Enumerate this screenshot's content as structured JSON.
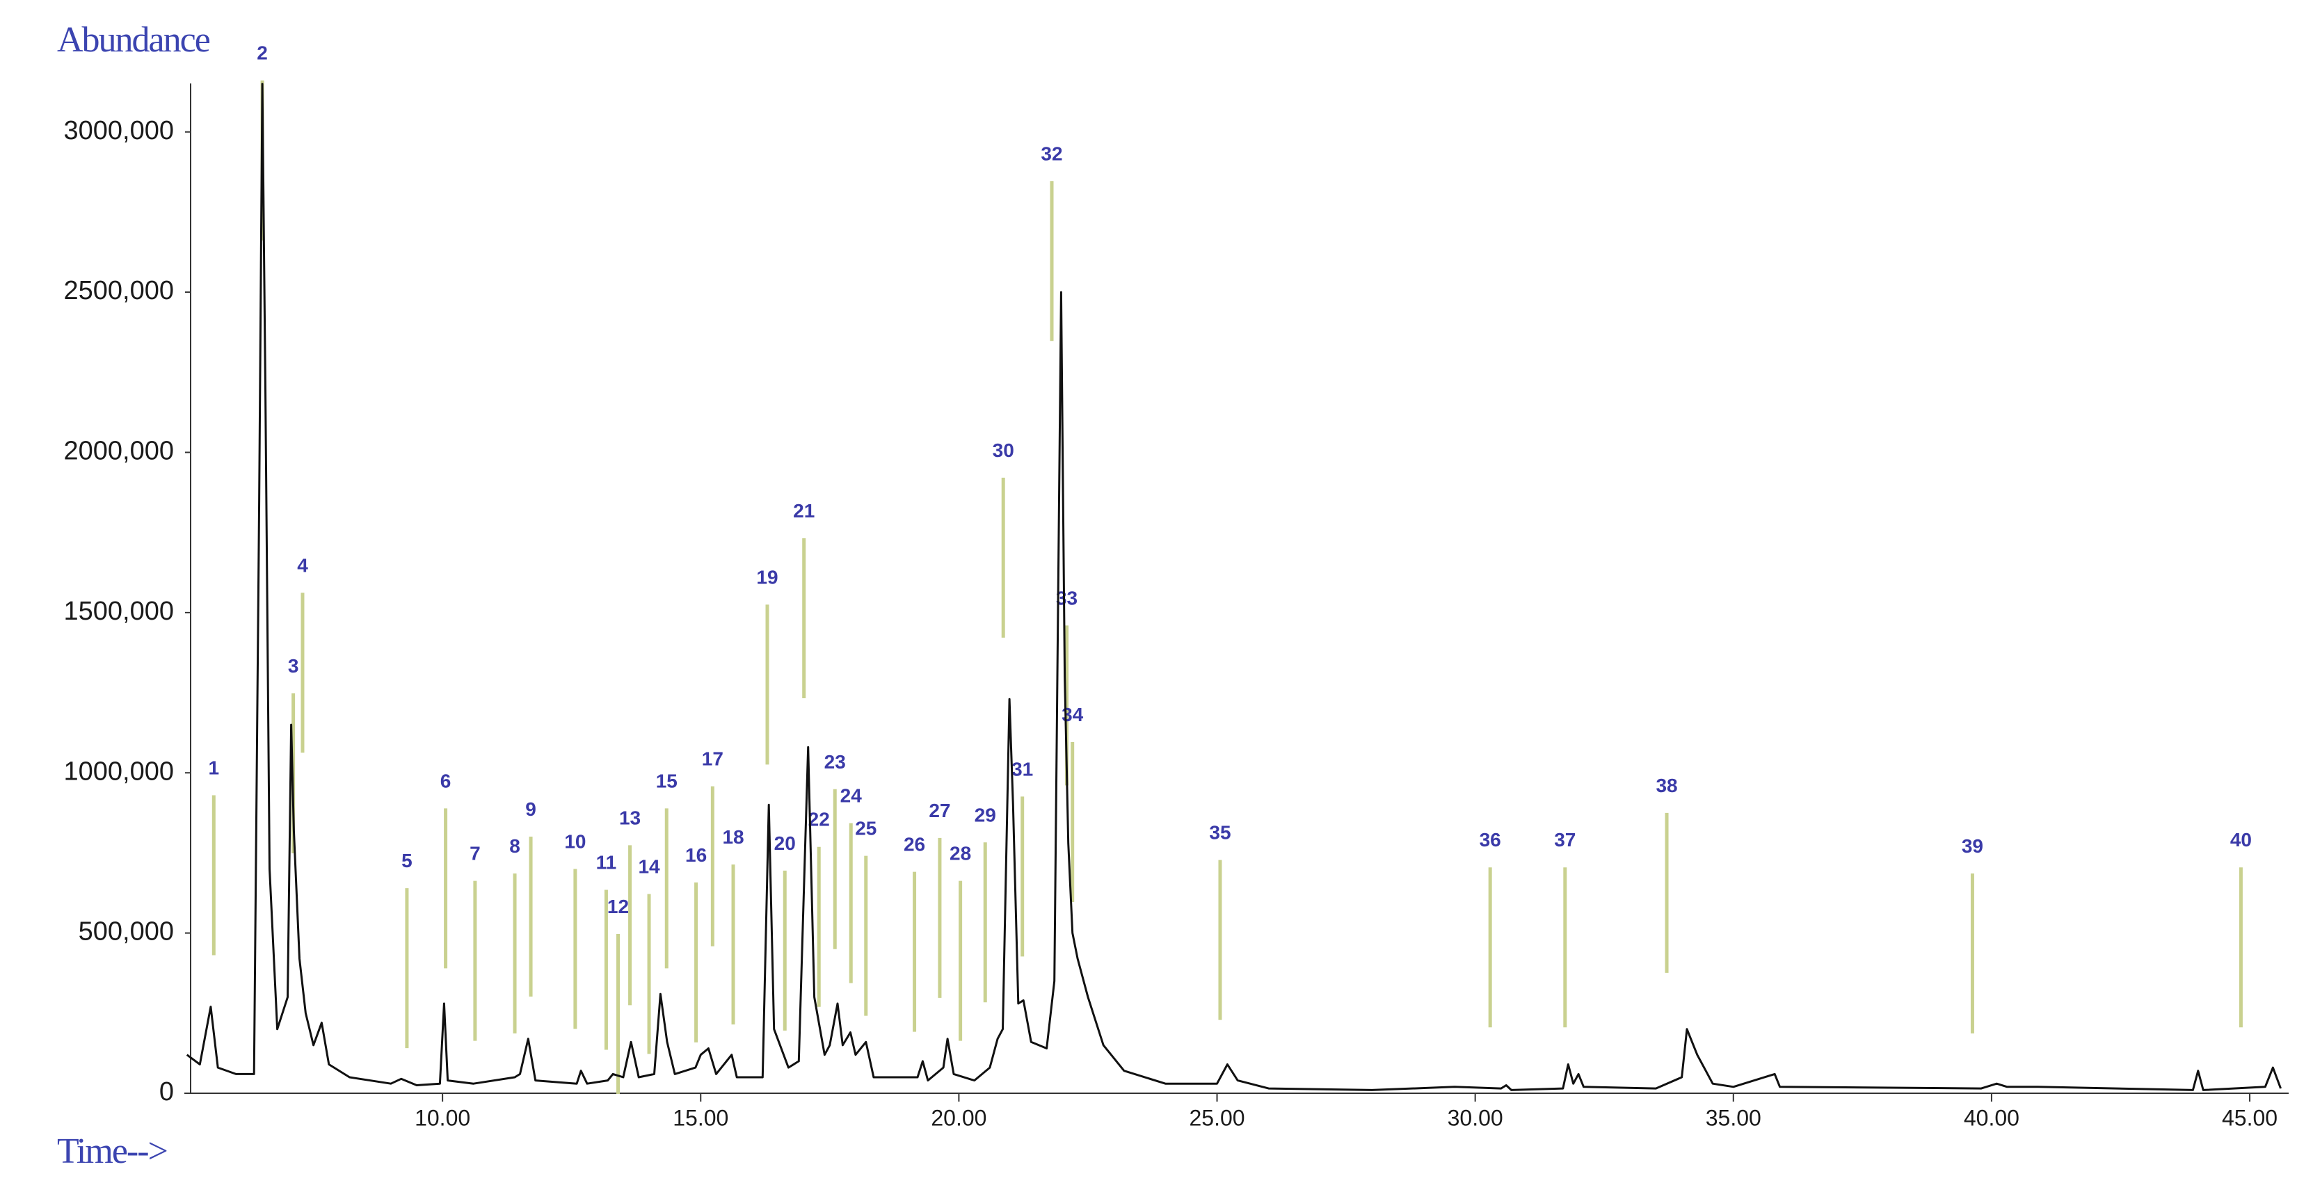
{
  "chart_data": {
    "type": "line",
    "y_label": "Abundance",
    "x_label": "Time-->",
    "color": "#111111",
    "marker_color": "#c9d18f",
    "label_color": "#3a3aa8",
    "xlim": [
      5.0,
      45.7
    ],
    "ylim": [
      0,
      3160000
    ],
    "xticks": [
      {
        "value": 10,
        "label": "10.00"
      },
      {
        "value": 15,
        "label": "15.00"
      },
      {
        "value": 20,
        "label": "20.00"
      },
      {
        "value": 25,
        "label": "25.00"
      },
      {
        "value": 30,
        "label": "30.00"
      },
      {
        "value": 35,
        "label": "35.00"
      },
      {
        "value": 40,
        "label": "40.00"
      },
      {
        "value": 45,
        "label": "45.00"
      }
    ],
    "yticks": [
      0,
      {
        "value": 500000,
        "label": "500,000"
      },
      {
        "value": 1000000,
        "label": "1000,000"
      },
      {
        "value": 1500000,
        "label": "1500,000"
      },
      {
        "value": 2000000,
        "label": "2000,000"
      },
      {
        "value": 2500000,
        "label": "2500,000"
      },
      {
        "value": 3000000,
        "label": "3000,000"
      }
    ],
    "x": [
      5.05,
      5.3,
      5.51,
      5.65,
      6.0,
      6.35,
      6.45,
      6.51,
      6.57,
      6.65,
      6.8,
      7.0,
      7.07,
      7.12,
      7.23,
      7.35,
      7.5,
      7.66,
      7.8,
      8.2,
      9.0,
      9.2,
      9.5,
      9.95,
      10.03,
      10.1,
      10.6,
      11.4,
      11.5,
      11.66,
      11.8,
      12.6,
      12.68,
      12.8,
      13.2,
      13.3,
      13.5,
      13.65,
      13.8,
      14.1,
      14.22,
      14.35,
      14.5,
      14.9,
      15.0,
      15.15,
      15.3,
      15.6,
      15.7,
      16.2,
      16.32,
      16.42,
      16.7,
      16.9,
      17.08,
      17.2,
      17.4,
      17.5,
      17.65,
      17.75,
      17.9,
      18.0,
      18.2,
      18.35,
      19.2,
      19.3,
      19.4,
      19.7,
      19.78,
      19.9,
      20.3,
      20.6,
      20.75,
      20.85,
      20.98,
      21.05,
      21.15,
      21.25,
      21.4,
      21.7,
      21.85,
      21.98,
      22.05,
      22.12,
      22.2,
      22.3,
      22.5,
      22.8,
      23.2,
      24.0,
      25.0,
      25.2,
      25.4,
      26.0,
      28.0,
      29.6,
      30.5,
      30.6,
      30.7,
      31.7,
      31.8,
      31.9,
      32.0,
      32.1,
      33.5,
      34.0,
      34.1,
      34.3,
      34.6,
      35.0,
      35.8,
      35.9,
      39.8,
      40.1,
      40.3,
      40.9,
      43.9,
      44.0,
      44.1,
      45.3,
      45.45,
      45.6
    ],
    "values": [
      120000,
      90000,
      270000,
      80000,
      60000,
      60000,
      1850000,
      3150000,
      2200000,
      700000,
      200000,
      300000,
      1150000,
      820000,
      420000,
      250000,
      150000,
      220000,
      90000,
      50000,
      30000,
      45000,
      25000,
      30000,
      280000,
      40000,
      30000,
      50000,
      60000,
      170000,
      40000,
      30000,
      70000,
      30000,
      40000,
      60000,
      50000,
      160000,
      50000,
      60000,
      310000,
      160000,
      60000,
      80000,
      120000,
      140000,
      60000,
      120000,
      50000,
      50000,
      900000,
      200000,
      80000,
      100000,
      1080000,
      300000,
      120000,
      150000,
      280000,
      150000,
      190000,
      120000,
      160000,
      50000,
      50000,
      100000,
      40000,
      80000,
      170000,
      60000,
      40000,
      80000,
      170000,
      200000,
      1230000,
      900000,
      280000,
      290000,
      160000,
      140000,
      350000,
      2500000,
      1300000,
      780000,
      500000,
      420000,
      300000,
      150000,
      70000,
      30000,
      30000,
      90000,
      40000,
      15000,
      10000,
      20000,
      15000,
      25000,
      10000,
      15000,
      90000,
      30000,
      60000,
      20000,
      15000,
      50000,
      200000,
      120000,
      30000,
      20000,
      60000,
      20000,
      15000,
      30000,
      20000,
      20000,
      10000,
      70000,
      10000,
      20000,
      80000,
      15000
    ],
    "annotations": [
      {
        "text": "1",
        "x": 5.57,
        "y": 995000
      },
      {
        "text": "2",
        "x": 6.51,
        "y": 3226000
      },
      {
        "text": "3",
        "x": 7.11,
        "y": 1313000
      },
      {
        "text": "4",
        "x": 7.29,
        "y": 1627000
      },
      {
        "text": "5",
        "x": 9.31,
        "y": 705000
      },
      {
        "text": "6",
        "x": 10.06,
        "y": 954000
      },
      {
        "text": "7",
        "x": 10.63,
        "y": 728000
      },
      {
        "text": "8",
        "x": 11.4,
        "y": 751000
      },
      {
        "text": "9",
        "x": 11.71,
        "y": 866000
      },
      {
        "text": "10",
        "x": 12.57,
        "y": 765000
      },
      {
        "text": "11",
        "x": 13.17,
        "y": 700000
      },
      {
        "text": "12",
        "x": 13.4,
        "y": 562000
      },
      {
        "text": "13",
        "x": 13.63,
        "y": 839000
      },
      {
        "text": "14",
        "x": 14.0,
        "y": 687000
      },
      {
        "text": "15",
        "x": 14.34,
        "y": 954000
      },
      {
        "text": "16",
        "x": 14.91,
        "y": 723000
      },
      {
        "text": "17",
        "x": 15.23,
        "y": 1023000
      },
      {
        "text": "18",
        "x": 15.63,
        "y": 779000
      },
      {
        "text": "19",
        "x": 16.29,
        "y": 1590000
      },
      {
        "text": "20",
        "x": 16.63,
        "y": 760000
      },
      {
        "text": "21",
        "x": 17.0,
        "y": 1797000
      },
      {
        "text": "22",
        "x": 17.29,
        "y": 834000
      },
      {
        "text": "23",
        "x": 17.6,
        "y": 1014000
      },
      {
        "text": "24",
        "x": 17.91,
        "y": 908000
      },
      {
        "text": "25",
        "x": 18.2,
        "y": 806000
      },
      {
        "text": "26",
        "x": 19.14,
        "y": 756000
      },
      {
        "text": "27",
        "x": 19.63,
        "y": 862000
      },
      {
        "text": "28",
        "x": 20.03,
        "y": 728000
      },
      {
        "text": "29",
        "x": 20.51,
        "y": 848000
      },
      {
        "text": "30",
        "x": 20.86,
        "y": 1986000
      },
      {
        "text": "31",
        "x": 21.23,
        "y": 991000
      },
      {
        "text": "32",
        "x": 21.8,
        "y": 2912000
      },
      {
        "text": "33",
        "x": 22.09,
        "y": 1525000
      },
      {
        "text": "34",
        "x": 22.2,
        "y": 1161000
      },
      {
        "text": "35",
        "x": 25.06,
        "y": 793000
      },
      {
        "text": "36",
        "x": 30.29,
        "y": 770000
      },
      {
        "text": "37",
        "x": 31.74,
        "y": 770000
      },
      {
        "text": "38",
        "x": 33.71,
        "y": 940000
      },
      {
        "text": "39",
        "x": 39.63,
        "y": 751000
      },
      {
        "text": "40",
        "x": 44.83,
        "y": 770000
      }
    ]
  }
}
